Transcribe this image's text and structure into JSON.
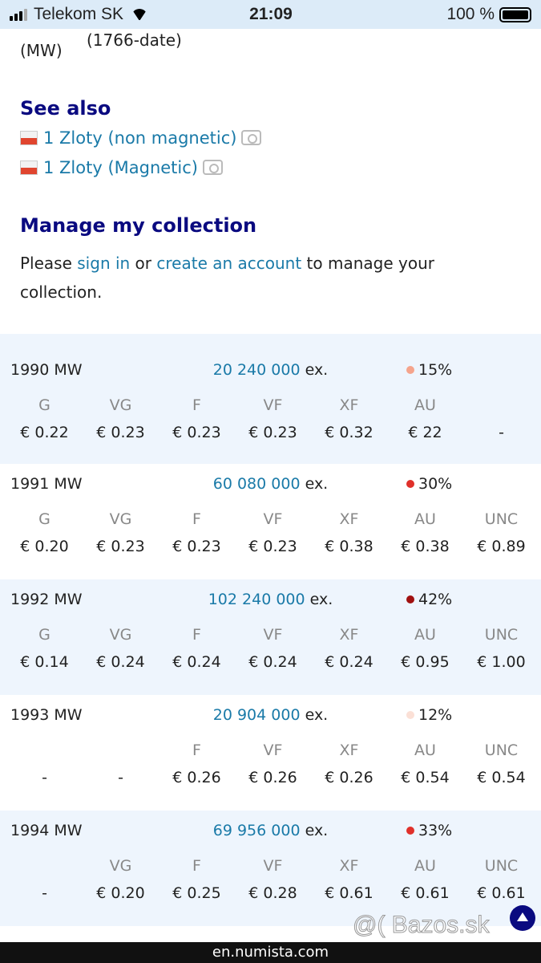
{
  "status_bar": {
    "carrier": "Telekom SK",
    "time": "21:09",
    "battery": "100 %"
  },
  "top": {
    "unit": "(MW)",
    "date": "(1766-date)"
  },
  "see_also": {
    "title": "See also",
    "items": [
      {
        "label": "1 Zloty (non magnetic)"
      },
      {
        "label": "1 Zloty (Magnetic)"
      }
    ]
  },
  "manage": {
    "title": "Manage my collection",
    "text1": "Please ",
    "sign_in": "sign in",
    "text2": " or ",
    "create": "create an account",
    "text3": " to manage your collection."
  },
  "rows": [
    {
      "year": "1990 MW",
      "mintage": "20 240 000",
      "ex": " ex.",
      "rarity": "15%",
      "dot": "#f5a48c",
      "grades": [
        "G",
        "VG",
        "F",
        "VF",
        "XF",
        "AU",
        ""
      ],
      "prices": [
        "€ 0.22",
        "€ 0.23",
        "€ 0.23",
        "€ 0.23",
        "€ 0.32",
        "€ 22",
        "-"
      ]
    },
    {
      "year": "1991 MW",
      "mintage": "60 080 000",
      "ex": " ex.",
      "rarity": "30%",
      "dot": "#e0302a",
      "grades": [
        "G",
        "VG",
        "F",
        "VF",
        "XF",
        "AU",
        "UNC"
      ],
      "prices": [
        "€ 0.20",
        "€ 0.23",
        "€ 0.23",
        "€ 0.23",
        "€ 0.38",
        "€ 0.38",
        "€ 0.89"
      ]
    },
    {
      "year": "1992 MW",
      "mintage": "102 240 000",
      "ex": " ex.",
      "rarity": "42%",
      "dot": "#a01010",
      "grades": [
        "G",
        "VG",
        "F",
        "VF",
        "XF",
        "AU",
        "UNC"
      ],
      "prices": [
        "€ 0.14",
        "€ 0.24",
        "€ 0.24",
        "€ 0.24",
        "€ 0.24",
        "€ 0.95",
        "€ 1.00"
      ]
    },
    {
      "year": "1993 MW",
      "mintage": "20 904 000",
      "ex": " ex.",
      "rarity": "12%",
      "dot": "#fbe0d6",
      "grades": [
        "",
        "",
        "F",
        "VF",
        "XF",
        "AU",
        "UNC"
      ],
      "prices": [
        "-",
        "-",
        "€ 0.26",
        "€ 0.26",
        "€ 0.26",
        "€ 0.54",
        "€ 0.54"
      ]
    },
    {
      "year": "1994 MW",
      "mintage": "69 956 000",
      "ex": " ex.",
      "rarity": "33%",
      "dot": "#e0302a",
      "grades": [
        "",
        "VG",
        "F",
        "VF",
        "XF",
        "AU",
        "UNC"
      ],
      "prices": [
        "-",
        "€ 0.20",
        "€ 0.25",
        "€ 0.28",
        "€ 0.61",
        "€ 0.61",
        "€ 0.61"
      ]
    }
  ],
  "footer": {
    "url": "en.numista.com",
    "watermark": "@( Bazos.sk"
  }
}
